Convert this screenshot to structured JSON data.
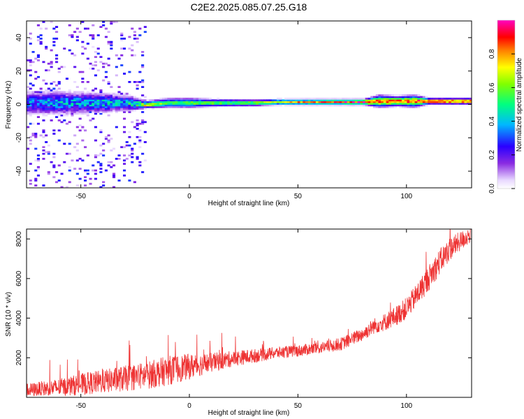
{
  "title": "C2E2.2025.085.07.25.G18",
  "colorbar_label": "Normalized spectral amplitude",
  "colorbar_ticks": [
    "0.0",
    "0.2",
    "0.4",
    "0.6",
    "0.8"
  ],
  "chart_data": [
    {
      "type": "heatmap",
      "xlabel": "Height of straight line (km)",
      "ylabel": "Frequency (Hz)",
      "xlim": [
        -75,
        130
      ],
      "ylim": [
        -50,
        50
      ],
      "x_ticks": [
        -50,
        0,
        50,
        100
      ],
      "y_ticks": [
        -40,
        -20,
        0,
        20,
        40
      ],
      "colorbar_range": [
        0,
        1
      ],
      "ridge": [
        {
          "x": -70,
          "freq": 1,
          "width": 5,
          "amp": 0.35
        },
        {
          "x": -60,
          "freq": 1,
          "width": 5,
          "amp": 0.4
        },
        {
          "x": -50,
          "freq": 1,
          "width": 4.5,
          "amp": 0.4
        },
        {
          "x": -40,
          "freq": 1,
          "width": 4,
          "amp": 0.45
        },
        {
          "x": -30,
          "freq": 1,
          "width": 3.5,
          "amp": 0.4
        },
        {
          "x": -20,
          "freq": 0,
          "width": 1.5,
          "amp": 0.75
        },
        {
          "x": -10,
          "freq": 1,
          "width": 2,
          "amp": 0.55
        },
        {
          "x": 0,
          "freq": 1,
          "width": 2,
          "amp": 0.6
        },
        {
          "x": 10,
          "freq": 1,
          "width": 1.5,
          "amp": 0.65
        },
        {
          "x": 20,
          "freq": 1,
          "width": 1.5,
          "amp": 0.55
        },
        {
          "x": 30,
          "freq": 1,
          "width": 1.3,
          "amp": 0.65
        },
        {
          "x": 40,
          "freq": 1.5,
          "width": 1.2,
          "amp": 0.7
        },
        {
          "x": 50,
          "freq": 1.5,
          "width": 1.2,
          "amp": 0.8
        },
        {
          "x": 60,
          "freq": 1.5,
          "width": 1.2,
          "amp": 0.85
        },
        {
          "x": 70,
          "freq": 1.5,
          "width": 1.2,
          "amp": 0.9
        },
        {
          "x": 80,
          "freq": 1.5,
          "width": 1.2,
          "amp": 0.95
        },
        {
          "x": 87,
          "freq": 2,
          "width": 2.5,
          "amp": 0.9
        },
        {
          "x": 95,
          "freq": 2,
          "width": 2,
          "amp": 0.9
        },
        {
          "x": 103,
          "freq": 2,
          "width": 2.5,
          "amp": 0.9
        },
        {
          "x": 110,
          "freq": 2,
          "width": 1.2,
          "amp": 0.95
        },
        {
          "x": 120,
          "freq": 2,
          "width": 1.2,
          "amp": 0.95
        },
        {
          "x": 130,
          "freq": 2,
          "width": 1.2,
          "amp": 0.95
        }
      ],
      "noise_region": {
        "x_from": -75,
        "x_to": -20,
        "freq_range": [
          -50,
          50
        ],
        "amp_max": 0.3
      }
    },
    {
      "type": "line",
      "xlabel": "Height of straight line (km)",
      "ylabel": "SNR (10 * v/v)",
      "xlim": [
        -75,
        130
      ],
      "ylim": [
        0,
        8500
      ],
      "x_ticks": [
        -50,
        0,
        50,
        100
      ],
      "y_ticks": [
        2000,
        4000,
        6000,
        8000
      ],
      "color": "#ee3333",
      "x": [
        -75,
        -60,
        -50,
        -40,
        -30,
        -20,
        -10,
        0,
        10,
        20,
        30,
        40,
        50,
        60,
        70,
        80,
        85,
        90,
        95,
        100,
        105,
        110,
        115,
        120,
        125,
        130
      ],
      "y": [
        350,
        500,
        650,
        800,
        950,
        1100,
        1350,
        1550,
        1750,
        1950,
        2100,
        2250,
        2350,
        2500,
        2700,
        3200,
        3600,
        3800,
        4100,
        4500,
        5200,
        6000,
        6800,
        7500,
        7900,
        8250
      ],
      "noise": [
        350,
        450,
        550,
        600,
        650,
        700,
        750,
        650,
        500,
        400,
        350,
        300,
        300,
        300,
        330,
        350,
        400,
        450,
        500,
        550,
        600,
        650,
        650,
        600,
        500,
        400
      ]
    }
  ]
}
